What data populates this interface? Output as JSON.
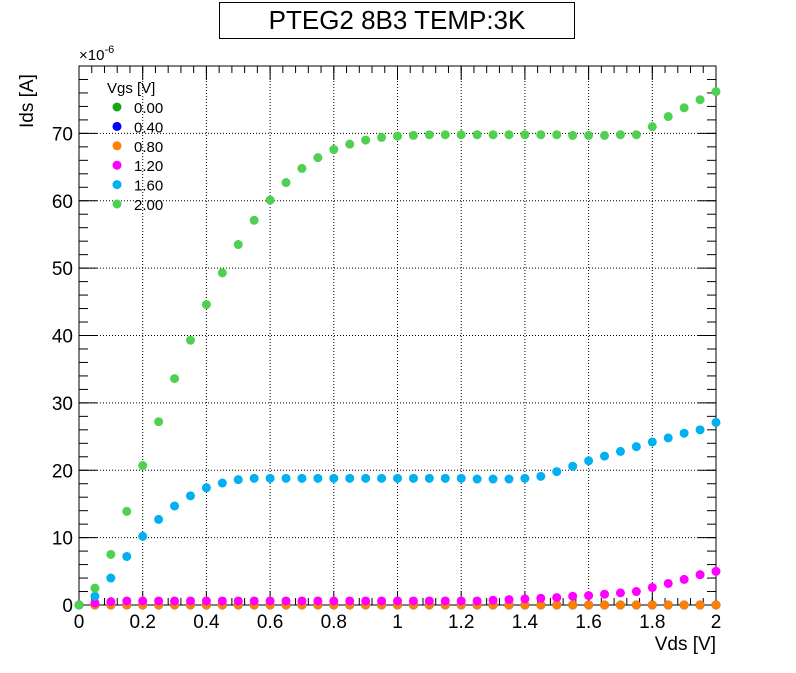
{
  "chart_data": {
    "type": "scatter",
    "title": "PTEG2 8B3 TEMP:3K",
    "xlabel": "Vds [V]",
    "ylabel": "Ids [A]",
    "y_exponent_label": "×10",
    "y_exponent_power": "-6",
    "xlim": [
      0,
      2
    ],
    "ylim": [
      0,
      80
    ],
    "x_ticks": [
      0,
      0.2,
      0.4,
      0.6,
      0.8,
      1,
      1.2,
      1.4,
      1.6,
      1.8,
      2
    ],
    "x_tick_labels": [
      "0",
      "0.2",
      "0.4",
      "0.6",
      "0.8",
      "1",
      "1.2",
      "1.4",
      "1.6",
      "1.8",
      "2"
    ],
    "y_ticks": [
      0,
      10,
      20,
      30,
      40,
      50,
      60,
      70
    ],
    "y_tick_labels": [
      "0",
      "10",
      "20",
      "30",
      "40",
      "50",
      "60",
      "70"
    ],
    "grid": true,
    "legend_position": "top-left",
    "legend_title": "Vgs [V]",
    "x": [
      0,
      0.05,
      0.1,
      0.15,
      0.2,
      0.25,
      0.3,
      0.35,
      0.4,
      0.45,
      0.5,
      0.55,
      0.6,
      0.65,
      0.7,
      0.75,
      0.8,
      0.85,
      0.9,
      0.95,
      1.0,
      1.05,
      1.1,
      1.15,
      1.2,
      1.25,
      1.3,
      1.35,
      1.4,
      1.45,
      1.5,
      1.55,
      1.6,
      1.65,
      1.7,
      1.75,
      1.8,
      1.85,
      1.9,
      1.95,
      2.0
    ],
    "series": [
      {
        "name": "0.00",
        "color": "#14aa14",
        "values": [
          0,
          0,
          0,
          0,
          0,
          0,
          0,
          0,
          0,
          0,
          0,
          0,
          0,
          0,
          0,
          0,
          0,
          0,
          0,
          0,
          0,
          0,
          0,
          0,
          0,
          0,
          0,
          0,
          0,
          0,
          0,
          0,
          0,
          0,
          0,
          0,
          0,
          0,
          0,
          0,
          0
        ]
      },
      {
        "name": "0.40",
        "color": "#0000ff",
        "values": [
          0,
          0,
          0,
          0,
          0,
          0,
          0,
          0,
          0,
          0,
          0,
          0,
          0,
          0,
          0,
          0,
          0,
          0,
          0,
          0,
          0,
          0,
          0,
          0,
          0,
          0,
          0,
          0,
          0,
          0,
          0,
          0,
          0,
          0,
          0,
          0,
          0,
          0,
          0,
          0,
          0
        ]
      },
      {
        "name": "0.80",
        "color": "#ff8000",
        "values": [
          0,
          0,
          0,
          0,
          0,
          0,
          0,
          0,
          0,
          0,
          0,
          0,
          0,
          0,
          0,
          0,
          0,
          0,
          0,
          0,
          0,
          0,
          0,
          0,
          0,
          0,
          0,
          0,
          0,
          0,
          0,
          0,
          0,
          0,
          0,
          0,
          0,
          0,
          0,
          0,
          0
        ]
      },
      {
        "name": "1.20",
        "color": "#ff00ff",
        "values": [
          0,
          0.3,
          0.5,
          0.6,
          0.6,
          0.6,
          0.6,
          0.6,
          0.6,
          0.6,
          0.6,
          0.6,
          0.6,
          0.6,
          0.6,
          0.6,
          0.6,
          0.6,
          0.6,
          0.6,
          0.6,
          0.6,
          0.6,
          0.6,
          0.6,
          0.6,
          0.7,
          0.8,
          0.9,
          1.0,
          1.1,
          1.3,
          1.4,
          1.6,
          1.8,
          2.0,
          2.6,
          3.2,
          3.8,
          4.5,
          5.0
        ]
      },
      {
        "name": "1.60",
        "color": "#00b0f0",
        "values": [
          0,
          1.3,
          4.0,
          7.2,
          10.2,
          12.7,
          14.7,
          16.2,
          17.4,
          18.1,
          18.6,
          18.8,
          18.8,
          18.8,
          18.8,
          18.8,
          18.8,
          18.8,
          18.8,
          18.8,
          18.8,
          18.8,
          18.8,
          18.8,
          18.8,
          18.7,
          18.7,
          18.7,
          18.8,
          19.1,
          19.8,
          20.6,
          21.4,
          22.1,
          22.8,
          23.5,
          24.2,
          24.8,
          25.5,
          26.0,
          27.1
        ]
      },
      {
        "name": "2.00",
        "color": "#50d050",
        "values": [
          0,
          2.5,
          7.5,
          13.9,
          20.7,
          27.2,
          33.6,
          39.3,
          44.6,
          49.3,
          53.5,
          57.1,
          60.1,
          62.7,
          64.8,
          66.4,
          67.6,
          68.4,
          69.0,
          69.4,
          69.6,
          69.7,
          69.8,
          69.8,
          69.8,
          69.8,
          69.8,
          69.8,
          69.8,
          69.8,
          69.8,
          69.7,
          69.7,
          69.7,
          69.8,
          69.8,
          71.0,
          72.5,
          73.8,
          75.0,
          76.2
        ]
      }
    ]
  }
}
